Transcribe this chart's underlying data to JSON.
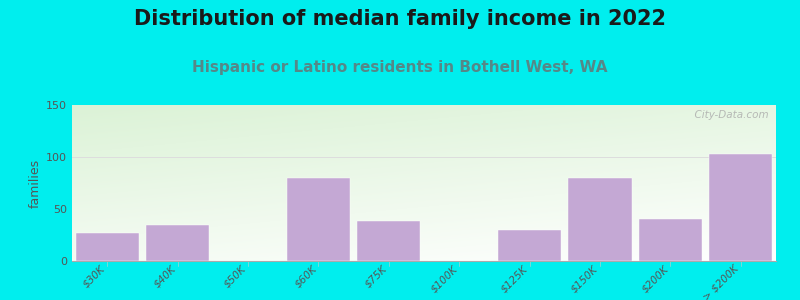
{
  "title": "Distribution of median family income in 2022",
  "subtitle": "Hispanic or Latino residents in Bothell West, WA",
  "ylabel": "families",
  "categories": [
    "$30K",
    "$40K",
    "$50K",
    "$60K",
    "$75K",
    "$100K",
    "$125K",
    "$150K",
    "$200K",
    "> $200K"
  ],
  "values": [
    27,
    35,
    0,
    80,
    38,
    0,
    30,
    80,
    40,
    103
  ],
  "bar_color": "#C4A8D4",
  "bar_edge_color": "#C4A8D4",
  "background_outer": "#00EEEE",
  "background_plot_top_left": "#D8EED0",
  "background_plot_top_right": "#FFFFFF",
  "background_plot_bottom": "#FFFFFF",
  "ylim": [
    0,
    150
  ],
  "yticks": [
    0,
    50,
    100,
    150
  ],
  "watermark": "  City-Data.com",
  "title_fontsize": 15,
  "subtitle_fontsize": 11,
  "subtitle_color": "#558888",
  "ylabel_fontsize": 9
}
